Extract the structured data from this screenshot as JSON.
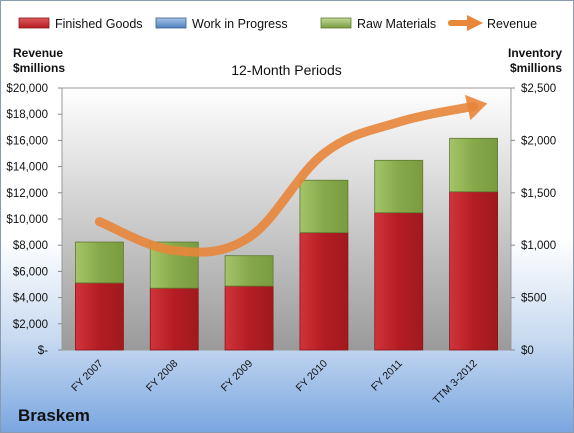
{
  "chart_data": {
    "type": "bar",
    "title": "12-Month Periods",
    "company": "Braskem",
    "left_axis_label": [
      "Revenue",
      "$millions"
    ],
    "right_axis_label": [
      "Inventory",
      "$millions"
    ],
    "categories": [
      "FY 2007",
      "FY 2008",
      "FY 2009",
      "FY 2010",
      "FY 2011",
      "TTM 3-2012"
    ],
    "left_ticks": [
      "$-",
      "$2,000",
      "$4,000",
      "$6,000",
      "$8,000",
      "$10,000",
      "$12,000",
      "$14,000",
      "$16,000",
      "$18,000",
      "$20,000"
    ],
    "right_ticks": [
      "$0",
      "$500",
      "$1,000",
      "$1,500",
      "$2,000",
      "$2,500"
    ],
    "ylim_left": [
      0,
      20000
    ],
    "ylim_right": [
      0,
      2500
    ],
    "stacked": true,
    "series": [
      {
        "name": "Finished Goods",
        "axis": "right",
        "values": [
          640,
          590,
          610,
          1120,
          1310,
          1510
        ],
        "color": "#c0262a"
      },
      {
        "name": "Work in Progress",
        "axis": "right",
        "values": [
          0,
          0,
          0,
          0,
          0,
          0
        ],
        "color": "#4f81bd"
      },
      {
        "name": "Raw Materials",
        "axis": "right",
        "values": [
          390,
          440,
          290,
          500,
          500,
          510
        ],
        "color": "#9bbb59"
      },
      {
        "name": "Revenue",
        "axis": "left",
        "type": "line",
        "values": [
          9800,
          7600,
          8600,
          15000,
          17400,
          18600
        ],
        "color": "#e8863a"
      }
    ],
    "legend_position": "top",
    "grid": false
  }
}
